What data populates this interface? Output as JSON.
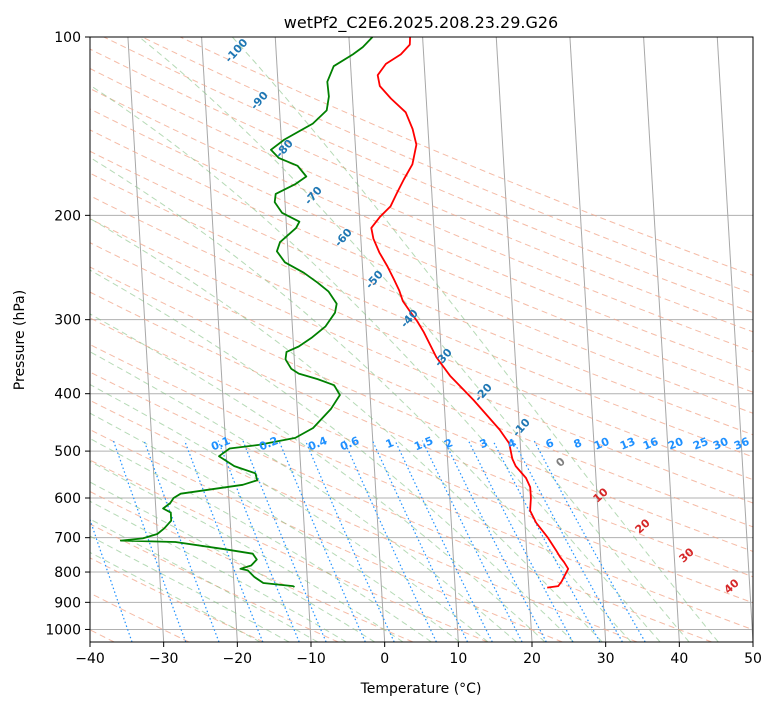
{
  "chart_data": {
    "type": "line",
    "title": "wetPf2_C2E6.2025.208.23.29.G26",
    "xlabel": "Temperature (°C)",
    "ylabel": "Pressure (hPa)",
    "xlim": [
      -40,
      50
    ],
    "ylim": [
      1050,
      100
    ],
    "y_scale": "log",
    "grid": true,
    "x_ticks": [
      -40,
      -30,
      -20,
      -10,
      0,
      10,
      20,
      30,
      40,
      50
    ],
    "y_ticks": [
      100,
      200,
      300,
      400,
      500,
      600,
      700,
      800,
      900,
      1000
    ],
    "series": [
      {
        "color": "#ff0000",
        "points": [
          [
            22.5,
            850
          ],
          [
            24,
            845
          ],
          [
            24.5,
            830
          ],
          [
            25.5,
            790
          ],
          [
            25,
            770
          ],
          [
            24.5,
            755
          ],
          [
            24,
            735
          ],
          [
            23,
            700
          ],
          [
            21.5,
            660
          ],
          [
            20.8,
            630
          ],
          [
            21,
            600
          ],
          [
            21,
            575
          ],
          [
            20.5,
            555
          ],
          [
            19.2,
            530
          ],
          [
            18.8,
            515
          ],
          [
            18.5,
            485
          ],
          [
            17.3,
            460
          ],
          [
            14,
            410
          ],
          [
            11,
            373
          ],
          [
            9.3,
            347
          ],
          [
            7.8,
            315
          ],
          [
            7,
            302
          ],
          [
            6.2,
            292
          ],
          [
            5.2,
            279
          ],
          [
            4.8,
            268
          ],
          [
            4.2,
            257
          ],
          [
            3.4,
            244
          ],
          [
            2.4,
            231
          ],
          [
            1.7,
            219
          ],
          [
            1.5,
            210
          ],
          [
            2.8,
            201
          ],
          [
            4.3,
            193
          ],
          [
            5.2,
            184
          ],
          [
            6.3,
            174
          ],
          [
            7.6,
            164
          ],
          [
            8.3,
            152
          ],
          [
            7.9,
            143
          ],
          [
            7.1,
            134
          ],
          [
            5.2,
            127
          ],
          [
            3.8,
            121
          ],
          [
            3.6,
            116
          ],
          [
            4.8,
            111
          ],
          [
            6.9,
            107
          ],
          [
            8.2,
            103
          ],
          [
            8.3,
            100
          ]
        ]
      },
      {
        "color": "#008000",
        "points": [
          [
            -11.8,
            848
          ],
          [
            -12,
            845
          ],
          [
            -16,
            835
          ],
          [
            -17.2,
            815
          ],
          [
            -18,
            795
          ],
          [
            -19,
            790
          ],
          [
            -17.5,
            780
          ],
          [
            -16.7,
            762
          ],
          [
            -17.2,
            745
          ],
          [
            -21,
            732
          ],
          [
            -27.6,
            712
          ],
          [
            -35,
            708
          ],
          [
            -32,
            702
          ],
          [
            -30,
            690
          ],
          [
            -29,
            675
          ],
          [
            -28,
            655
          ],
          [
            -28,
            635
          ],
          [
            -29,
            625
          ],
          [
            -28,
            612
          ],
          [
            -27.5,
            600
          ],
          [
            -26.5,
            590
          ],
          [
            -18,
            570
          ],
          [
            -16,
            560
          ],
          [
            -16.2,
            545
          ],
          [
            -19,
            530
          ],
          [
            -21,
            510
          ],
          [
            -19.5,
            495
          ],
          [
            -15.5,
            488
          ],
          [
            -10.5,
            475
          ],
          [
            -8,
            457
          ],
          [
            -5.4,
            424
          ],
          [
            -4.1,
            402
          ],
          [
            -4.8,
            387
          ],
          [
            -7,
            378
          ],
          [
            -9.5,
            370
          ],
          [
            -10.5,
            363
          ],
          [
            -11.2,
            350
          ],
          [
            -11,
            340
          ],
          [
            -9.3,
            333
          ],
          [
            -7.5,
            322
          ],
          [
            -5.5,
            308
          ],
          [
            -4.1,
            292
          ],
          [
            -3.8,
            282
          ],
          [
            -4.8,
            269
          ],
          [
            -6.2,
            260
          ],
          [
            -8,
            250
          ],
          [
            -10.5,
            240
          ],
          [
            -11.5,
            230
          ],
          [
            -11,
            222
          ],
          [
            -8.7,
            210
          ],
          [
            -8.2,
            205
          ],
          [
            -10.5,
            198
          ],
          [
            -11.4,
            190
          ],
          [
            -11.2,
            184
          ],
          [
            -8.4,
            177
          ],
          [
            -6.9,
            172
          ],
          [
            -8,
            165
          ],
          [
            -10.5,
            160
          ],
          [
            -11.5,
            155
          ],
          [
            -9.6,
            149
          ],
          [
            -5.6,
            140
          ],
          [
            -3.6,
            133
          ],
          [
            -3.2,
            126
          ],
          [
            -3.3,
            119
          ],
          [
            -2.3,
            112
          ],
          [
            0.4,
            107
          ],
          [
            1.8,
            104
          ],
          [
            2.5,
            102
          ],
          [
            3.2,
            100
          ]
        ]
      }
    ],
    "mixing_ratio_labels": [
      "0.1",
      "0.2",
      "0.4",
      "0.6",
      "1",
      "1.5",
      "2",
      "3",
      "4",
      "6",
      "8",
      "10",
      "13",
      "16",
      "20",
      "25",
      "30",
      "36"
    ],
    "dry_adiabat_labels": [
      "-100",
      "-90",
      "-80",
      "-70",
      "-60",
      "-50",
      "-40",
      "-30",
      "-20",
      "-10"
    ],
    "moist_adiabat_labels": [
      "0",
      "10",
      "20",
      "30",
      "40"
    ]
  }
}
